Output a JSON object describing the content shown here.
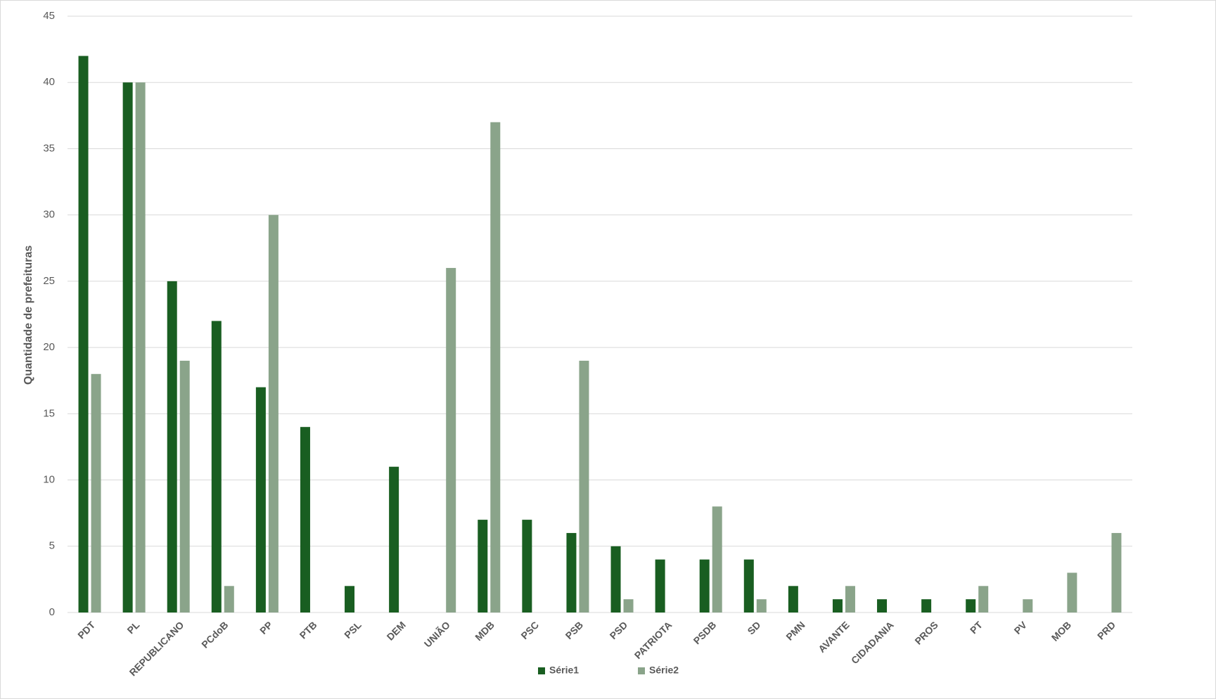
{
  "chart_data": {
    "type": "bar",
    "y_label": "Quantidade de prefeituras",
    "categories": [
      "PDT",
      "PL",
      "REPUBLICANO",
      "PCdoB",
      "PP",
      "PTB",
      "PSL",
      "DEM",
      "UNIÃO",
      "MDB",
      "PSC",
      "PSB",
      "PSD",
      "PATRIOTA",
      "PSDB",
      "SD",
      "PMN",
      "AVANTE",
      "CIDADANIA",
      "PROS",
      "PT",
      "PV",
      "MOB",
      "PRD"
    ],
    "series": [
      {
        "name": "Série1",
        "color": "#195e21",
        "values": [
          42,
          40,
          25,
          22,
          17,
          14,
          2,
          11,
          0,
          7,
          7,
          6,
          5,
          4,
          4,
          4,
          2,
          1,
          1,
          1,
          1,
          0,
          0,
          0
        ]
      },
      {
        "name": "Série2",
        "color": "#8aa48a",
        "values": [
          18,
          40,
          19,
          2,
          30,
          0,
          0,
          0,
          26,
          37,
          0,
          19,
          1,
          0,
          8,
          1,
          0,
          2,
          0,
          0,
          2,
          1,
          3,
          6
        ]
      }
    ],
    "ylim": [
      0,
      45
    ],
    "yticks": [
      0,
      5,
      10,
      15,
      20,
      25,
      30,
      35,
      40,
      45
    ],
    "grid": true,
    "legend": "bottom"
  }
}
